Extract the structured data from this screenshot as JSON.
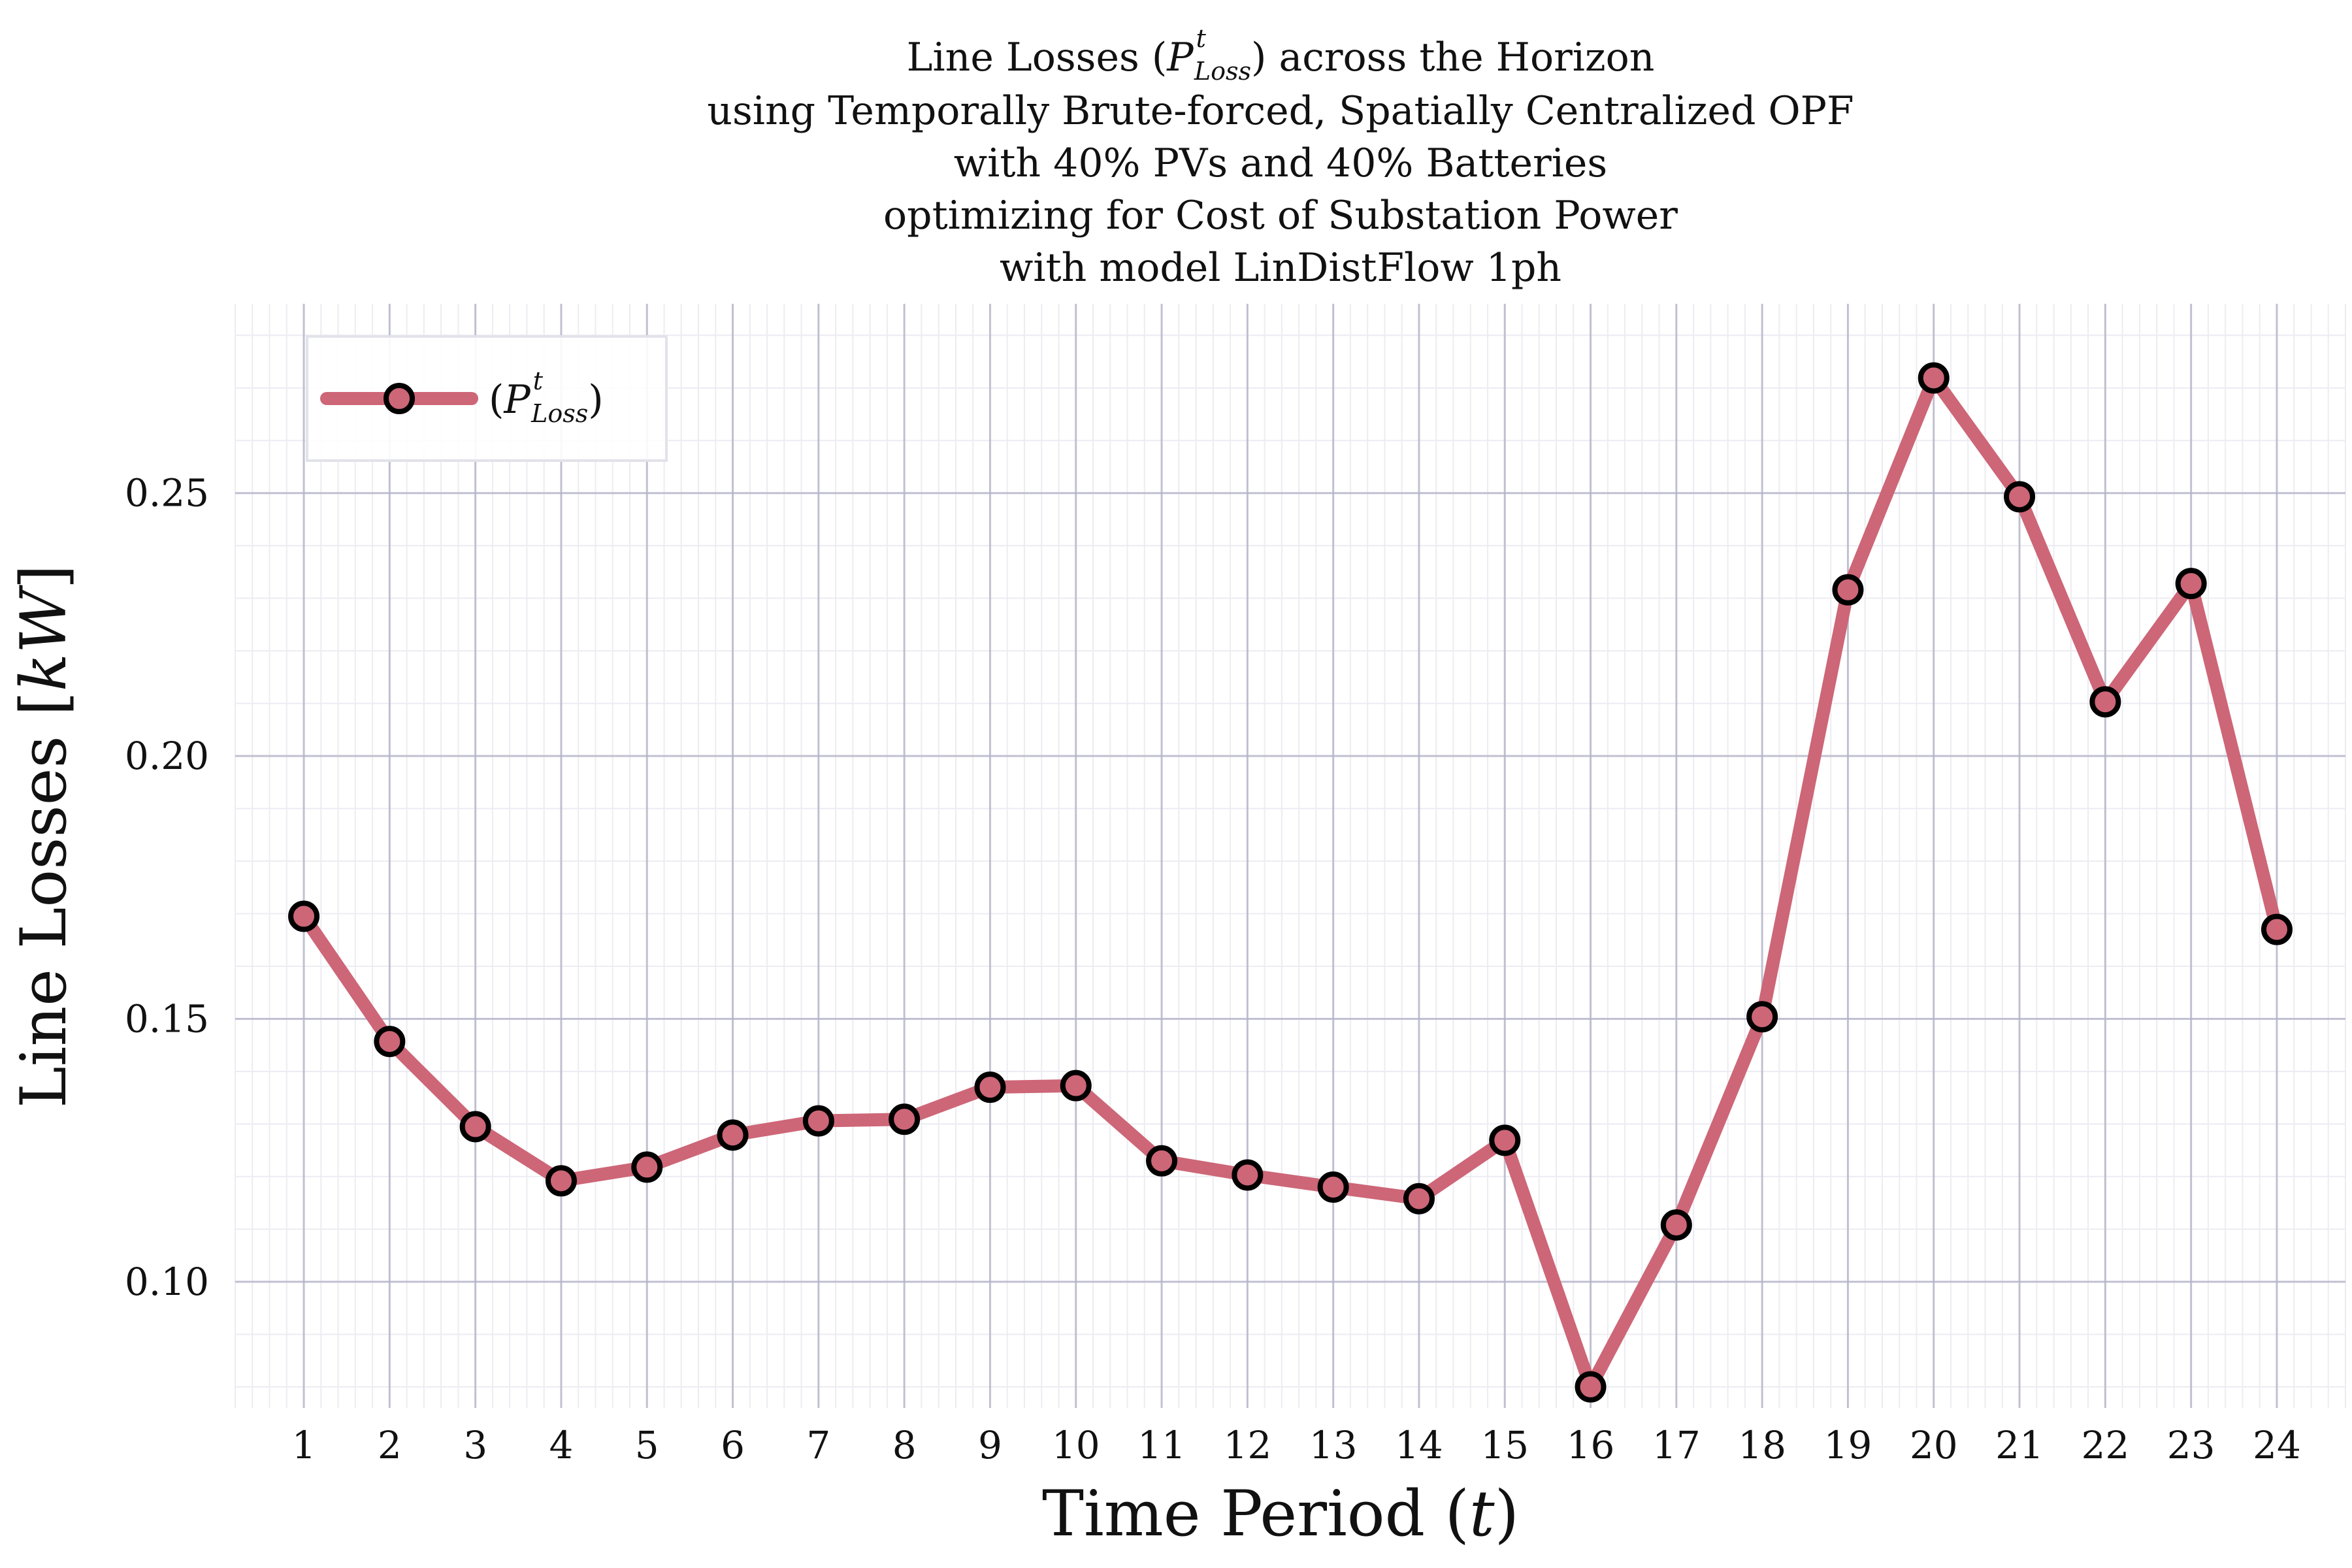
{
  "title": {
    "line1_pre": "Line Losses (",
    "line1_sym": "P",
    "line1_sup": "t",
    "line1_sub": "Loss",
    "line1_post": ") across the Horizon",
    "line2": "using Temporally Brute-forced, Spatially Centralized OPF",
    "line3": "with 40% PVs and 40% Batteries",
    "line4": "optimizing for Cost of Substation Power",
    "line5": "with model LinDistFlow 1ph"
  },
  "axes": {
    "xlabel_text": "Time Period (",
    "xlabel_var": "t",
    "xlabel_close": ")",
    "ylabel_text": "Line Losses [",
    "ylabel_var": "kW",
    "ylabel_close": "]"
  },
  "legend": {
    "open": "(",
    "sym": "P",
    "sup": "t",
    "sub": "Loss",
    "close": ")"
  },
  "colors": {
    "line": "#cd6677",
    "marker_fill": "#cd6677",
    "marker_edge": "#000000",
    "grid_major": "#b4b4c8",
    "grid_minor": "#ececf2"
  },
  "chart_data": {
    "type": "line",
    "x": [
      1,
      2,
      3,
      4,
      5,
      6,
      7,
      8,
      9,
      10,
      11,
      12,
      13,
      14,
      15,
      16,
      17,
      18,
      19,
      20,
      21,
      22,
      23,
      24
    ],
    "xticks": [
      "1",
      "2",
      "3",
      "4",
      "5",
      "6",
      "7",
      "8",
      "9",
      "10",
      "11",
      "12",
      "13",
      "14",
      "15",
      "16",
      "17",
      "18",
      "19",
      "20",
      "21",
      "22",
      "23",
      "24"
    ],
    "yticks": [
      0.1,
      0.15,
      0.2,
      0.25
    ],
    "ytick_labels": [
      "0.10",
      "0.15",
      "0.20",
      "0.25"
    ],
    "xlim": [
      0.2,
      24.8
    ],
    "ylim": [
      0.076,
      0.286
    ],
    "grid": true,
    "legend_position": "top-left",
    "series": [
      {
        "values": [
          0.1695,
          0.1457,
          0.1295,
          0.1192,
          0.1218,
          0.1279,
          0.1306,
          0.1309,
          0.137,
          0.1373,
          0.123,
          0.1203,
          0.118,
          0.1158,
          0.1269,
          0.08,
          0.1108,
          0.1504,
          0.2316,
          0.2719,
          0.2493,
          0.2103,
          0.2328,
          0.167
        ]
      }
    ]
  }
}
